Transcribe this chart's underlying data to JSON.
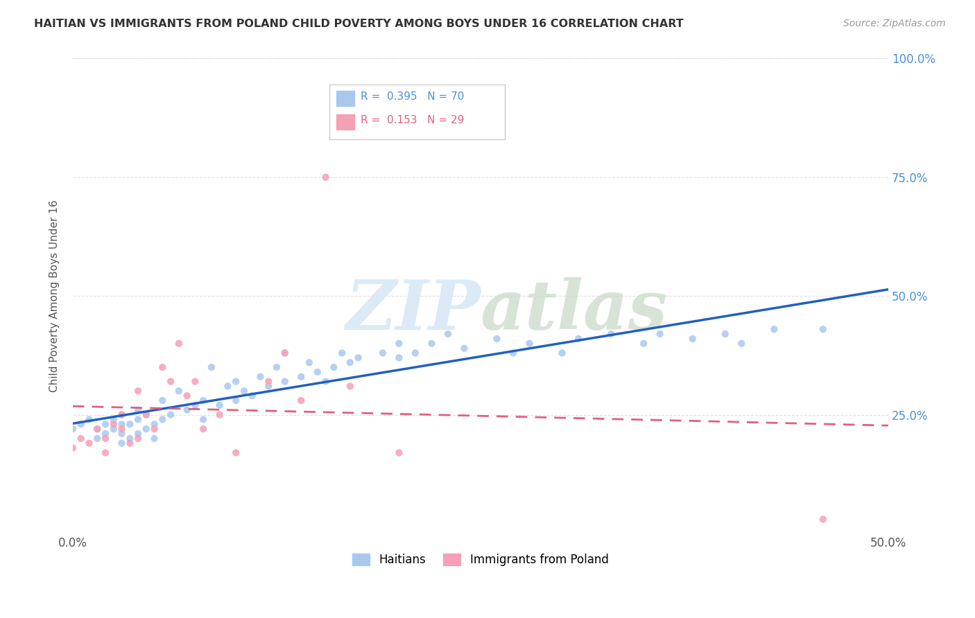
{
  "title": "HAITIAN VS IMMIGRANTS FROM POLAND CHILD POVERTY AMONG BOYS UNDER 16 CORRELATION CHART",
  "source": "Source: ZipAtlas.com",
  "ylabel": "Child Poverty Among Boys Under 16",
  "legend_labels": [
    "Haitians",
    "Immigrants from Poland"
  ],
  "R_haitian": 0.395,
  "N_haitian": 70,
  "R_poland": 0.153,
  "N_poland": 29,
  "haitian_color": "#a8c8f0",
  "poland_color": "#f4a0b5",
  "haitian_line_color": "#2060c0",
  "poland_line_color": "#e06080",
  "background_color": "#ffffff",
  "grid_color": "#e0e0e0",
  "haitian_scatter_x": [
    0.0,
    0.005,
    0.01,
    0.015,
    0.015,
    0.02,
    0.02,
    0.025,
    0.025,
    0.03,
    0.03,
    0.03,
    0.03,
    0.035,
    0.035,
    0.04,
    0.04,
    0.04,
    0.045,
    0.045,
    0.05,
    0.05,
    0.055,
    0.055,
    0.06,
    0.065,
    0.07,
    0.075,
    0.08,
    0.08,
    0.085,
    0.09,
    0.095,
    0.1,
    0.1,
    0.105,
    0.11,
    0.115,
    0.12,
    0.125,
    0.13,
    0.13,
    0.14,
    0.145,
    0.15,
    0.155,
    0.16,
    0.165,
    0.17,
    0.175,
    0.19,
    0.2,
    0.2,
    0.21,
    0.22,
    0.23,
    0.24,
    0.26,
    0.27,
    0.28,
    0.3,
    0.31,
    0.33,
    0.35,
    0.36,
    0.38,
    0.4,
    0.41,
    0.43,
    0.46
  ],
  "haitian_scatter_y": [
    0.22,
    0.23,
    0.24,
    0.2,
    0.22,
    0.21,
    0.23,
    0.22,
    0.24,
    0.19,
    0.21,
    0.23,
    0.25,
    0.2,
    0.23,
    0.21,
    0.24,
    0.26,
    0.22,
    0.25,
    0.2,
    0.23,
    0.24,
    0.28,
    0.25,
    0.3,
    0.26,
    0.27,
    0.28,
    0.24,
    0.35,
    0.27,
    0.31,
    0.28,
    0.32,
    0.3,
    0.29,
    0.33,
    0.31,
    0.35,
    0.32,
    0.38,
    0.33,
    0.36,
    0.34,
    0.32,
    0.35,
    0.38,
    0.36,
    0.37,
    0.38,
    0.37,
    0.4,
    0.38,
    0.4,
    0.42,
    0.39,
    0.41,
    0.38,
    0.4,
    0.38,
    0.41,
    0.42,
    0.4,
    0.42,
    0.41,
    0.42,
    0.4,
    0.43,
    0.43
  ],
  "poland_scatter_x": [
    0.0,
    0.005,
    0.01,
    0.015,
    0.02,
    0.02,
    0.025,
    0.03,
    0.03,
    0.035,
    0.04,
    0.04,
    0.045,
    0.05,
    0.055,
    0.06,
    0.065,
    0.07,
    0.075,
    0.08,
    0.09,
    0.1,
    0.12,
    0.13,
    0.14,
    0.155,
    0.17,
    0.2,
    0.46
  ],
  "poland_scatter_y": [
    0.18,
    0.2,
    0.19,
    0.22,
    0.17,
    0.2,
    0.23,
    0.22,
    0.25,
    0.19,
    0.2,
    0.3,
    0.25,
    0.22,
    0.35,
    0.32,
    0.4,
    0.29,
    0.32,
    0.22,
    0.25,
    0.17,
    0.32,
    0.38,
    0.28,
    0.75,
    0.31,
    0.17,
    0.03
  ]
}
